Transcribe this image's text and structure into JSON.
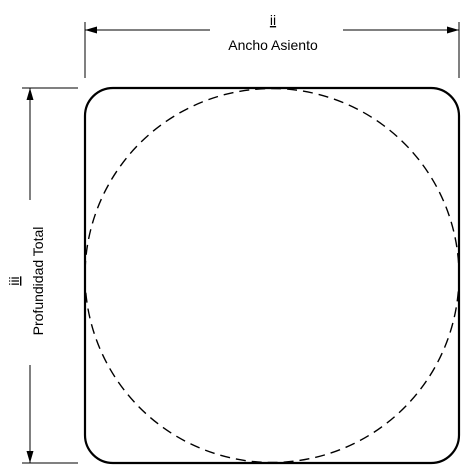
{
  "dimensions": {
    "width": {
      "code": "ii",
      "label": "Ancho Asiento"
    },
    "depth": {
      "code": "iii",
      "label": "Profundidad Total"
    }
  },
  "shapes": {
    "outline": "rounded-square",
    "inner": "dashed-circle"
  }
}
